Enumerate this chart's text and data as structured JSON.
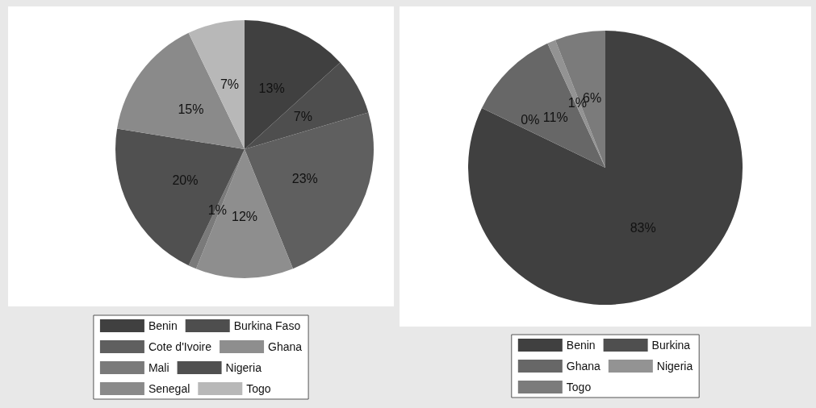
{
  "chart_data": [
    {
      "type": "pie",
      "categories": [
        "Benin",
        "Burkina Faso",
        "Cote d'Ivoire",
        "Ghana",
        "Mali",
        "Nigeria",
        "Senegal",
        "Togo"
      ],
      "values": [
        13,
        7,
        23,
        12,
        1,
        20,
        15,
        7
      ],
      "value_labels": [
        "13%",
        "7%",
        "23%",
        "12%",
        "1%",
        "20%",
        "15%",
        "7%"
      ],
      "colors": [
        "#404040",
        "#4e4e4e",
        "#5f5f5f",
        "#8e8e8e",
        "#7a7a7a",
        "#505050",
        "#8a8a8a",
        "#b8b8b8"
      ],
      "legend": "bottom"
    },
    {
      "type": "pie",
      "categories": [
        "Benin",
        "Burkina",
        "Ghana",
        "Nigeria",
        "Togo"
      ],
      "values": [
        83,
        0,
        11,
        1,
        6
      ],
      "value_labels": [
        "83%",
        "0%",
        "11%",
        "1%",
        "6%"
      ],
      "colors": [
        "#404040",
        "#4f4f4f",
        "#676767",
        "#939393",
        "#7b7b7b"
      ],
      "legend": "bottom"
    }
  ]
}
